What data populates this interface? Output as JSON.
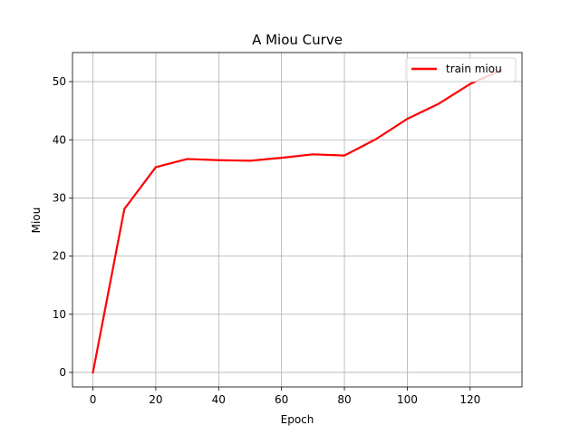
{
  "chart_data": {
    "type": "line",
    "title": "A Miou Curve",
    "xlabel": "Epoch",
    "ylabel": "Miou",
    "xlim": [
      -6.5,
      136.5
    ],
    "ylim": [
      -2.5,
      55
    ],
    "xticks": [
      0,
      20,
      40,
      60,
      80,
      100,
      120
    ],
    "yticks": [
      0,
      10,
      20,
      30,
      40,
      50
    ],
    "grid": true,
    "legend": {
      "placement": "upper right",
      "entries": [
        "train miou"
      ]
    },
    "series": [
      {
        "name": "train miou",
        "color": "#ff0000",
        "x": [
          0,
          10,
          20,
          30,
          40,
          50,
          60,
          70,
          80,
          90,
          100,
          110,
          120,
          130
        ],
        "y": [
          0,
          28.1,
          35.3,
          36.7,
          36.5,
          36.4,
          36.9,
          37.5,
          37.3,
          40.1,
          43.6,
          46.2,
          49.6,
          52.0
        ]
      }
    ]
  }
}
